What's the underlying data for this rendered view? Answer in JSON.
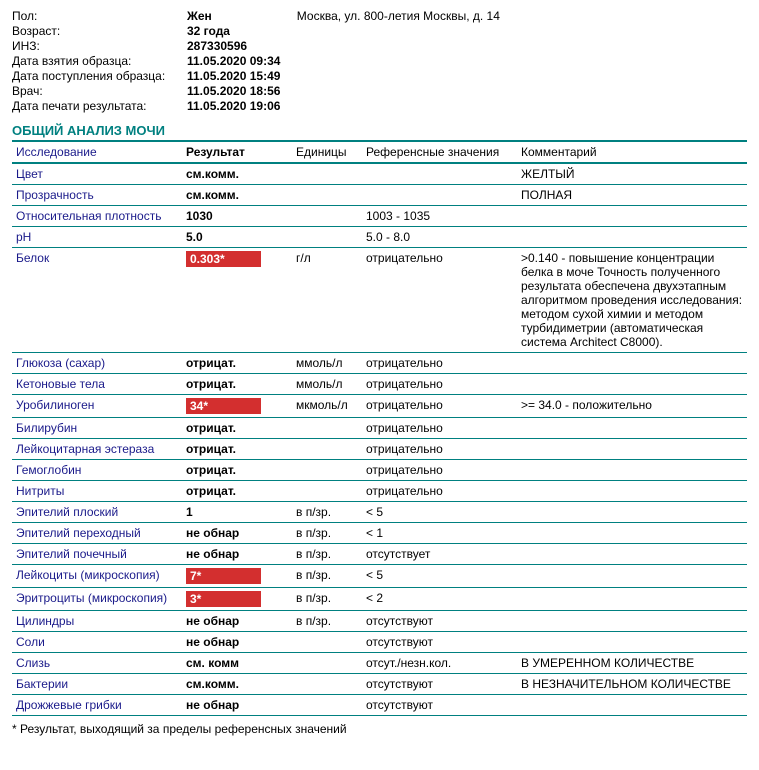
{
  "header": {
    "rows": [
      {
        "label": "Пол:",
        "value": "Жен",
        "address": "Москва, ул. 800-летия Москвы, д. 14"
      },
      {
        "label": "Возраст:",
        "value": "32 года"
      },
      {
        "label": "ИНЗ:",
        "value": "287330596"
      },
      {
        "label": "Дата взятия образца:",
        "value": "11.05.2020 09:34"
      },
      {
        "label": "Дата поступления образца:",
        "value": "11.05.2020 15:49"
      },
      {
        "label": "Врач:",
        "value": "11.05.2020 18:56"
      },
      {
        "label": "Дата печати результата:",
        "value": "11.05.2020 19:06"
      }
    ]
  },
  "section_title": "ОБЩИЙ АНАЛИЗ МОЧИ",
  "columns": {
    "name": "Исследование",
    "result": "Результат",
    "units": "Единицы",
    "ref": "Референсные значения",
    "comment": "Комментарий"
  },
  "rows": [
    {
      "name": "Цвет",
      "result": "см.комм.",
      "units": "",
      "ref": "",
      "comment": "ЖЕЛТЫЙ",
      "alert": false
    },
    {
      "name": "Прозрачность",
      "result": "см.комм.",
      "units": "",
      "ref": "",
      "comment": "ПОЛНАЯ",
      "alert": false
    },
    {
      "name": "Относительная плотность",
      "result": "1030",
      "units": "",
      "ref": "1003 - 1035",
      "comment": "",
      "alert": false
    },
    {
      "name": "pH",
      "result": "5.0",
      "units": "",
      "ref": "5.0 - 8.0",
      "comment": "",
      "alert": false
    },
    {
      "name": "Белок",
      "result": "0.303*",
      "units": "г/л",
      "ref": "отрицательно",
      "comment": ">0.140 - повышение концентрации белка в моче Точность полученного результата обеспечена двухэтапным алгоритмом проведения исследования: методом сухой химии и методом турбидиметрии (автоматическая система Architect C8000).",
      "alert": true
    },
    {
      "name": "Глюкоза (сахар)",
      "result": "отрицат.",
      "units": "ммоль/л",
      "ref": "отрицательно",
      "comment": "",
      "alert": false
    },
    {
      "name": "Кетоновые тела",
      "result": "отрицат.",
      "units": "ммоль/л",
      "ref": "отрицательно",
      "comment": "",
      "alert": false
    },
    {
      "name": "Уробилиноген",
      "result": "34*",
      "units": "мкмоль/л",
      "ref": "отрицательно",
      "comment": ">= 34.0 - положительно",
      "alert": true
    },
    {
      "name": "Билирубин",
      "result": "отрицат.",
      "units": "",
      "ref": "отрицательно",
      "comment": "",
      "alert": false
    },
    {
      "name": "Лейкоцитарная эстераза",
      "result": "отрицат.",
      "units": "",
      "ref": "отрицательно",
      "comment": "",
      "alert": false
    },
    {
      "name": "Гемоглобин",
      "result": "отрицат.",
      "units": "",
      "ref": "отрицательно",
      "comment": "",
      "alert": false
    },
    {
      "name": "Нитриты",
      "result": "отрицат.",
      "units": "",
      "ref": "отрицательно",
      "comment": "",
      "alert": false
    },
    {
      "name": "Эпителий плоский",
      "result": "1",
      "units": "в п/зр.",
      "ref": "< 5",
      "comment": "",
      "alert": false
    },
    {
      "name": "Эпителий переходный",
      "result": "не обнар",
      "units": "в п/зр.",
      "ref": "< 1",
      "comment": "",
      "alert": false
    },
    {
      "name": "Эпителий почечный",
      "result": "не обнар",
      "units": "в п/зр.",
      "ref": "отсутствует",
      "comment": "",
      "alert": false
    },
    {
      "name": "Лейкоциты (микроскопия)",
      "result": "7*",
      "units": "в п/зр.",
      "ref": "< 5",
      "comment": "",
      "alert": true
    },
    {
      "name": "Эритроциты (микроскопия)",
      "result": "3*",
      "units": "в п/зр.",
      "ref": "< 2",
      "comment": "",
      "alert": true
    },
    {
      "name": "Цилиндры",
      "result": "не обнар",
      "units": "в п/зр.",
      "ref": "отсутствуют",
      "comment": "",
      "alert": false
    },
    {
      "name": "Соли",
      "result": "не обнар",
      "units": "",
      "ref": "отсутствуют",
      "comment": "",
      "alert": false
    },
    {
      "name": "Слизь",
      "result": "см. комм",
      "units": "",
      "ref": "отсут./незн.кол.",
      "comment": "В УМЕРЕННОМ КОЛИЧЕСТВЕ",
      "alert": false
    },
    {
      "name": "Бактерии",
      "result": "см.комм.",
      "units": "",
      "ref": "отсутствуют",
      "comment": "В НЕЗНАЧИТЕЛЬНОМ КОЛИЧЕСТВЕ",
      "alert": false
    },
    {
      "name": "Дрожжевые грибки",
      "result": "не обнар",
      "units": "",
      "ref": "отсутствуют",
      "comment": "",
      "alert": false
    }
  ],
  "footnote": "* Результат, выходящий за пределы референсных значений"
}
